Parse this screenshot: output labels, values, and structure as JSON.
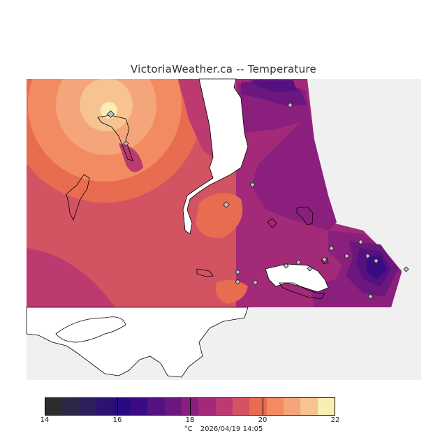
{
  "title": "VictoriaWeather.ca -- Temperature",
  "legend": {
    "colors": [
      "#2d2d2d",
      "#2b2746",
      "#2c1f5c",
      "#2d1272",
      "#2a0a80",
      "#3b0a85",
      "#55117f",
      "#6c177d",
      "#8a1f7d",
      "#a32a78",
      "#bb3a6f",
      "#d25361",
      "#e86c50",
      "#f28b62",
      "#f5a57a",
      "#f7c390",
      "#f8edb2"
    ],
    "ticks": [
      {
        "label": "14",
        "value": 14
      },
      {
        "label": "16",
        "value": 16
      },
      {
        "label": "18",
        "value": 18
      },
      {
        "label": "20",
        "value": 20
      },
      {
        "label": "22",
        "value": 22
      }
    ],
    "min": 14,
    "max": 22,
    "unit": "°C",
    "timestamp": "2026/04/19 14:05"
  }
}
